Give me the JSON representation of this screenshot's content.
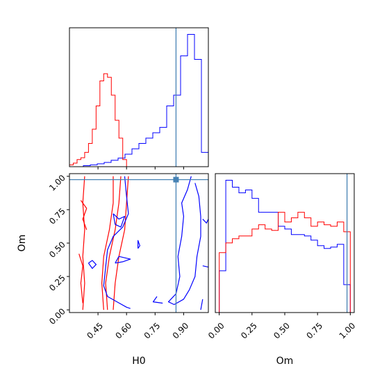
{
  "colors": {
    "blue": "#0000ff",
    "red": "#ff0000",
    "truth": "#4682b4",
    "axis": "#000000"
  },
  "chart_data": [
    {
      "panel": "H0 marginal",
      "type": "step",
      "xlim": [
        0.3,
        1.03
      ],
      "truth_x": 0.86,
      "series": [
        {
          "color": "blue",
          "edges": [
            0.3,
            0.3365,
            0.373,
            0.4095,
            0.446,
            0.4825,
            0.519,
            0.5555,
            0.592,
            0.6285,
            0.665,
            0.7015,
            0.738,
            0.7745,
            0.811,
            0.8475,
            0.884,
            0.9205,
            0.957,
            0.9935,
            1.03
          ],
          "counts": [
            0,
            0,
            0.3,
            0.5,
            0.8,
            1.2,
            1.8,
            2.4,
            3.5,
            5.0,
            6.5,
            8.0,
            9.5,
            11.0,
            17.0,
            20.0,
            31.0,
            37.0,
            30.0,
            4.0
          ]
        },
        {
          "color": "red",
          "edges": [
            0.3,
            0.32,
            0.34,
            0.36,
            0.38,
            0.4,
            0.42,
            0.44,
            0.46,
            0.48,
            0.5,
            0.52,
            0.54,
            0.56,
            0.58,
            0.6,
            0.62
          ],
          "counts": [
            0.5,
            1.0,
            2.0,
            2.5,
            4.0,
            6.5,
            10.5,
            17.0,
            24.0,
            26.0,
            25.0,
            20.0,
            13.0,
            8.0,
            2.0,
            0
          ]
        }
      ]
    },
    {
      "panel": "H0 vs Om",
      "type": "contour",
      "xlabel": "H0",
      "ylabel": "Om",
      "xlim": [
        0.3,
        1.03
      ],
      "ylim": [
        -0.02,
        1.02
      ],
      "xticks": [
        "0.45",
        "0.60",
        "0.75",
        "0.90"
      ],
      "yticks": [
        "0.00",
        "0.25",
        "0.50",
        "0.75",
        "1.00"
      ],
      "truth": {
        "x": 0.86,
        "y": 0.975
      },
      "contours": [
        {
          "color": "red",
          "points": [
            [
              0.38,
              1.0
            ],
            [
              0.37,
              0.8
            ],
            [
              0.38,
              0.6
            ],
            [
              0.37,
              0.4
            ],
            [
              0.38,
              0.2
            ],
            [
              0.37,
              0.0
            ]
          ]
        },
        {
          "color": "red",
          "points": [
            [
              0.36,
              0.82
            ],
            [
              0.39,
              0.76
            ],
            [
              0.37,
              0.68
            ],
            [
              0.39,
              0.6
            ]
          ]
        },
        {
          "color": "red",
          "points": [
            [
              0.35,
              0.42
            ],
            [
              0.37,
              0.33
            ],
            [
              0.36,
              0.2
            ],
            [
              0.37,
              0.05
            ]
          ]
        },
        {
          "color": "red",
          "points": [
            [
              0.48,
              0.0
            ],
            [
              0.47,
              0.2
            ],
            [
              0.48,
              0.4
            ],
            [
              0.51,
              0.6
            ],
            [
              0.53,
              0.8
            ],
            [
              0.53,
              1.0
            ]
          ]
        },
        {
          "color": "red",
          "points": [
            [
              0.5,
              0.0
            ],
            [
              0.49,
              0.2
            ],
            [
              0.51,
              0.4
            ],
            [
              0.54,
              0.6
            ],
            [
              0.56,
              0.8
            ],
            [
              0.57,
              1.0
            ]
          ]
        },
        {
          "color": "red",
          "points": [
            [
              0.53,
              0.0
            ],
            [
              0.54,
              0.2
            ],
            [
              0.56,
              0.4
            ],
            [
              0.59,
              0.6
            ],
            [
              0.6,
              0.8
            ],
            [
              0.61,
              1.0
            ]
          ]
        },
        {
          "color": "blue",
          "points": [
            [
              0.59,
              1.0
            ],
            [
              0.6,
              0.85
            ],
            [
              0.61,
              0.72
            ],
            [
              0.58,
              0.62
            ],
            [
              0.53,
              0.55
            ],
            [
              0.5,
              0.45
            ],
            [
              0.49,
              0.32
            ],
            [
              0.48,
              0.18
            ],
            [
              0.5,
              0.1
            ],
            [
              0.55,
              0.06
            ],
            [
              0.6,
              0.02
            ],
            [
              0.62,
              0.01
            ]
          ]
        },
        {
          "color": "blue",
          "points": [
            [
              0.53,
              0.72
            ],
            [
              0.56,
              0.68
            ],
            [
              0.59,
              0.7
            ],
            [
              0.57,
              0.62
            ],
            [
              0.54,
              0.64
            ],
            [
              0.53,
              0.72
            ]
          ]
        },
        {
          "color": "blue",
          "points": [
            [
              0.54,
              0.35
            ],
            [
              0.58,
              0.36
            ],
            [
              0.62,
              0.38
            ],
            [
              0.56,
              0.4
            ],
            [
              0.54,
              0.35
            ]
          ]
        },
        {
          "color": "blue",
          "points": [
            [
              0.4,
              0.35
            ],
            [
              0.42,
              0.31
            ],
            [
              0.44,
              0.34
            ],
            [
              0.42,
              0.37
            ],
            [
              0.4,
              0.35
            ]
          ]
        },
        {
          "color": "blue",
          "points": [
            [
              0.66,
              0.46
            ],
            [
              0.66,
              0.52
            ],
            [
              0.67,
              0.48
            ],
            [
              0.66,
              0.46
            ]
          ]
        },
        {
          "color": "blue",
          "points": [
            [
              0.94,
              1.0
            ],
            [
              0.92,
              0.9
            ],
            [
              0.89,
              0.8
            ],
            [
              0.9,
              0.7
            ],
            [
              0.89,
              0.55
            ],
            [
              0.87,
              0.4
            ],
            [
              0.88,
              0.25
            ],
            [
              0.86,
              0.12
            ],
            [
              0.82,
              0.06
            ],
            [
              0.85,
              0.04
            ],
            [
              0.9,
              0.08
            ],
            [
              0.93,
              0.15
            ],
            [
              0.96,
              0.25
            ],
            [
              0.97,
              0.4
            ],
            [
              0.99,
              0.55
            ],
            [
              0.99,
              0.7
            ],
            [
              0.98,
              0.85
            ],
            [
              0.96,
              0.95
            ]
          ]
        },
        {
          "color": "blue",
          "points": [
            [
              1.0,
              0.68
            ],
            [
              1.02,
              0.65
            ],
            [
              1.03,
              0.68
            ]
          ]
        },
        {
          "color": "blue",
          "points": [
            [
              1.0,
              0.33
            ],
            [
              1.03,
              0.32
            ]
          ]
        },
        {
          "color": "blue",
          "points": [
            [
              1.0,
              0.08
            ],
            [
              0.99,
              0.0
            ]
          ]
        },
        {
          "color": "blue",
          "points": [
            [
              0.76,
              0.1
            ],
            [
              0.74,
              0.06
            ],
            [
              0.79,
              0.05
            ]
          ]
        }
      ]
    },
    {
      "panel": "Om marginal",
      "type": "step",
      "xlabel": "Om",
      "xlim": [
        -0.03,
        1.03
      ],
      "xticks": [
        "0.00",
        "0.25",
        "0.50",
        "0.75",
        "1.00"
      ],
      "truth_x": 0.975,
      "series": [
        {
          "color": "blue",
          "edges": [
            0.0,
            0.05,
            0.1,
            0.15,
            0.2,
            0.25,
            0.3,
            0.35,
            0.4,
            0.45,
            0.5,
            0.55,
            0.6,
            0.65,
            0.7,
            0.75,
            0.8,
            0.85,
            0.9,
            0.95,
            1.0
          ],
          "counts": [
            0.3,
            0.95,
            0.9,
            0.86,
            0.88,
            0.82,
            0.72,
            0.72,
            0.72,
            0.62,
            0.6,
            0.56,
            0.56,
            0.55,
            0.52,
            0.48,
            0.46,
            0.47,
            0.49,
            0.2
          ]
        },
        {
          "color": "red",
          "edges": [
            0.0,
            0.05,
            0.1,
            0.15,
            0.2,
            0.25,
            0.3,
            0.35,
            0.4,
            0.45,
            0.5,
            0.55,
            0.6,
            0.65,
            0.7,
            0.75,
            0.8,
            0.85,
            0.9,
            0.95,
            1.0
          ],
          "counts": [
            0.43,
            0.5,
            0.53,
            0.55,
            0.55,
            0.6,
            0.63,
            0.6,
            0.59,
            0.72,
            0.65,
            0.68,
            0.72,
            0.68,
            0.62,
            0.65,
            0.63,
            0.62,
            0.65,
            0.58
          ]
        }
      ]
    }
  ]
}
